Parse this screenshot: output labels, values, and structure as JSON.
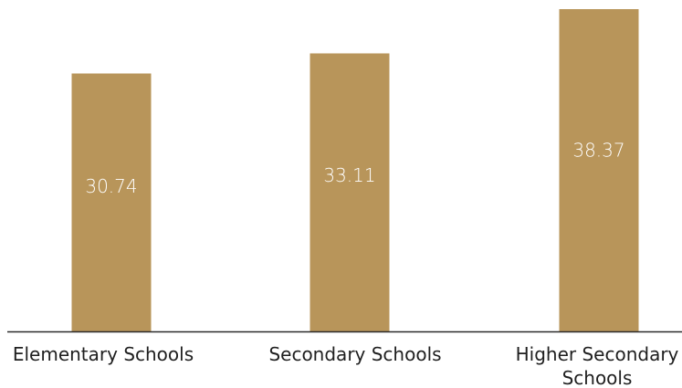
{
  "chart_data": {
    "type": "bar",
    "categories": [
      "Elementary Schools",
      "Secondary Schools",
      "Higher Secondary Schools"
    ],
    "values": [
      30.74,
      33.11,
      38.37
    ],
    "value_labels": [
      "30.74",
      "33.11",
      "38.37"
    ],
    "category_label_lines": [
      [
        "Elementary Schools"
      ],
      [
        "Secondary Schools"
      ],
      [
        "Higher Secondary",
        "Schools"
      ]
    ],
    "ylim": [
      0,
      38.37
    ],
    "grid": false,
    "legend": "none",
    "colors": {
      "bar": "#B8955A",
      "value_label": "#FFFFFF",
      "axis": "#2A2A2A",
      "text": "#1F1F1F"
    }
  }
}
